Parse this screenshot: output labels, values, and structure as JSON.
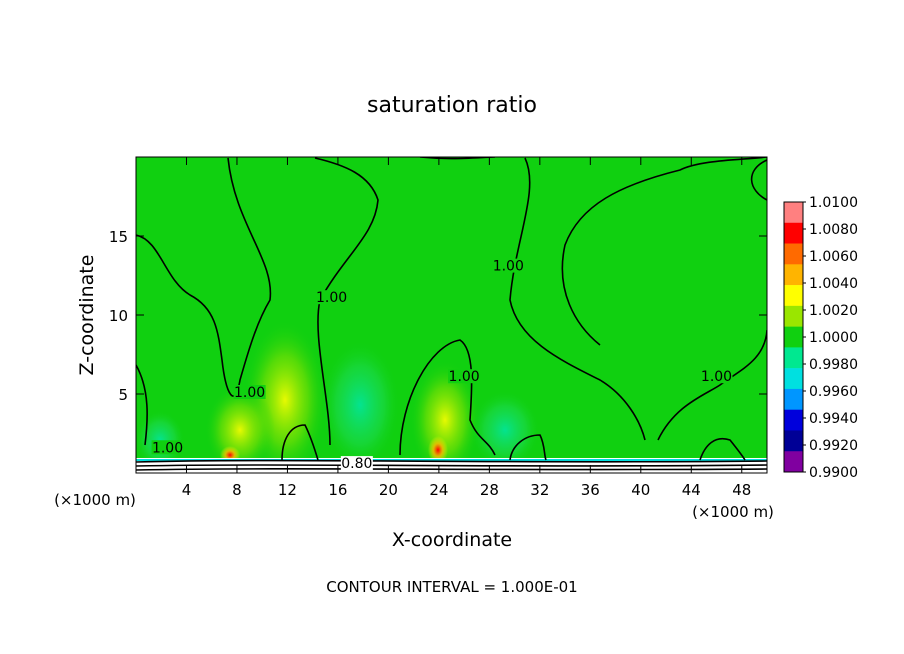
{
  "chart_data": {
    "type": "heatmap",
    "title": "saturation ratio",
    "xlabel": "X-coordinate",
    "ylabel": "Z-coordinate",
    "x_unit_left": "(×1000 m)",
    "x_unit_right": "(×1000 m)",
    "xlim": [
      0,
      50
    ],
    "ylim": [
      0,
      20
    ],
    "x_ticks": [
      4,
      8,
      12,
      16,
      20,
      24,
      28,
      32,
      36,
      40,
      44,
      48
    ],
    "y_ticks": [
      5,
      10,
      15
    ],
    "footnote": "CONTOUR INTERVAL = 1.000E-01",
    "colorbar": {
      "levels": [
        "1.0100",
        "1.0080",
        "1.0060",
        "1.0040",
        "1.0020",
        "1.0000",
        "0.9980",
        "0.9960",
        "0.9940",
        "0.9920",
        "0.9900"
      ],
      "colors": [
        "#ff8080",
        "#ff0000",
        "#ff6a00",
        "#ffb400",
        "#ffff00",
        "#9ae600",
        "#10d010",
        "#00e890",
        "#00e0e0",
        "#0096ff",
        "#0000dc",
        "#000096",
        "#8000a0"
      ]
    },
    "contour_labels": [
      {
        "text": "1.00",
        "x": 9,
        "z": 5
      },
      {
        "text": "1.00",
        "x": 15.5,
        "z": 11
      },
      {
        "text": "1.00",
        "x": 29.5,
        "z": 13
      },
      {
        "text": "1.00",
        "x": 26,
        "z": 6
      },
      {
        "text": "1.00",
        "x": 46,
        "z": 6
      },
      {
        "text": "1.00",
        "x": 2.5,
        "z": 1.5
      },
      {
        "text": "0.80",
        "x": 17.5,
        "z": 0.5
      }
    ],
    "background_value": 1.0
  }
}
